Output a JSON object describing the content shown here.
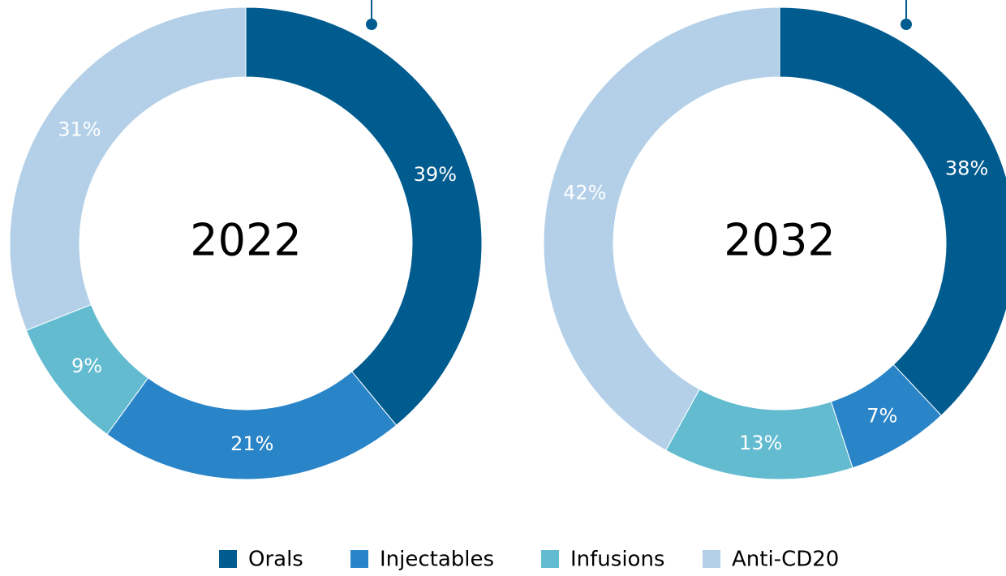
{
  "categories": [
    "Orals",
    "Injectables",
    "Infusions",
    "Anti-CD20"
  ],
  "colors": [
    "#005b8f",
    "#2a85c8",
    "#63bbd0",
    "#b3d0e8"
  ],
  "chart_data": [
    {
      "type": "pie",
      "title": "2022",
      "values": [
        39,
        21,
        9,
        31
      ],
      "value_labels": [
        "39%",
        "21%",
        "9%",
        "31%"
      ]
    },
    {
      "type": "pie",
      "title": "2032",
      "values": [
        38,
        7,
        13,
        42
      ],
      "value_labels": [
        "38%",
        "7%",
        "13%",
        "42%"
      ]
    }
  ]
}
